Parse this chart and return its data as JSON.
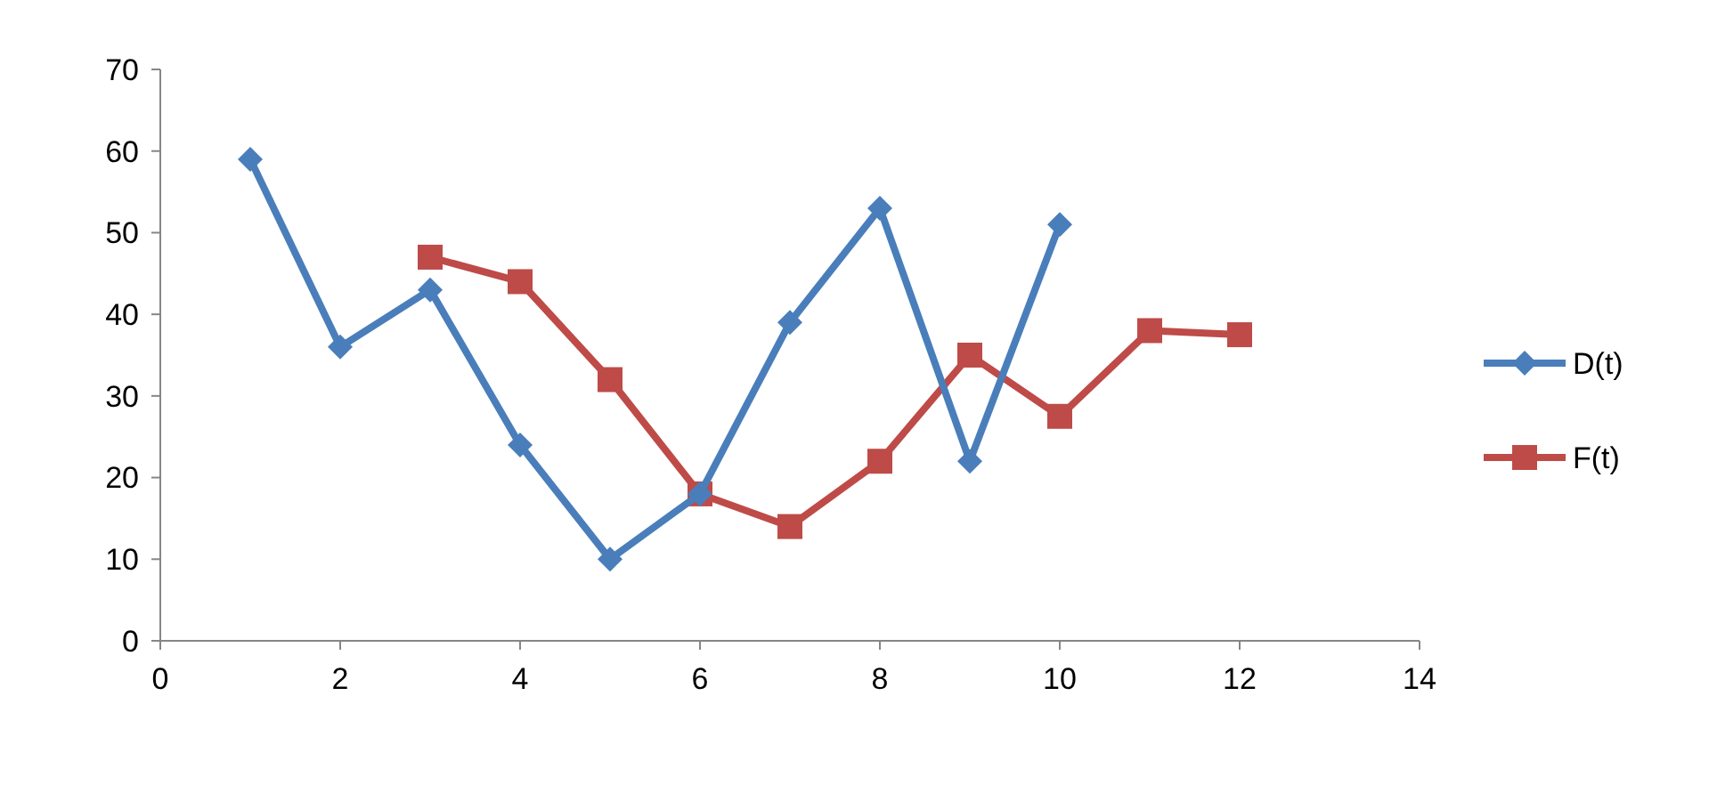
{
  "chart_data": {
    "type": "line",
    "x": [
      1,
      2,
      3,
      4,
      5,
      6,
      7,
      8,
      9,
      10,
      11,
      12
    ],
    "series": [
      {
        "name": "D(t)",
        "color": "#4a7ebb",
        "marker": "diamond",
        "values": [
          59,
          36,
          43,
          24,
          10,
          18,
          39,
          53,
          22,
          51,
          null,
          null
        ]
      },
      {
        "name": "F(t)",
        "color": "#be4b48",
        "marker": "square",
        "values": [
          null,
          null,
          47,
          44,
          32,
          18,
          14,
          22,
          35,
          27.5,
          38,
          37.5
        ]
      }
    ],
    "xlim": [
      0,
      14
    ],
    "xticks": [
      0,
      2,
      4,
      6,
      8,
      10,
      12,
      14
    ],
    "ylim": [
      0,
      70
    ],
    "yticks": [
      0,
      10,
      20,
      30,
      40,
      50,
      60,
      70
    ],
    "grid": false,
    "legend": "right"
  }
}
